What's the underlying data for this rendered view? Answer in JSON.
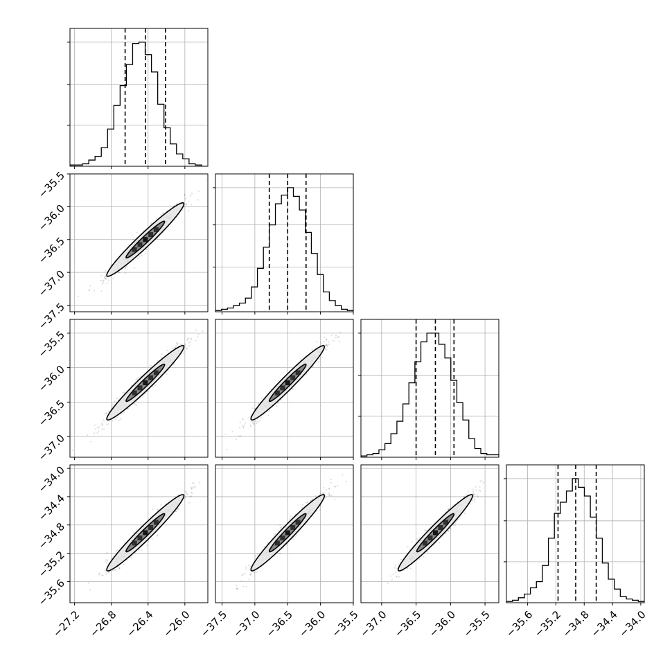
{
  "chart_data": {
    "type": "corner",
    "grid": true,
    "parameters": [
      {
        "index": 0,
        "range": [
          -27.25,
          -25.75
        ],
        "axis_ticks": [
          -27.2,
          -26.8,
          -26.4,
          -26.0
        ],
        "axis_tick_labels": [
          "−27.2",
          "−26.8",
          "−26.4",
          "−26.0"
        ],
        "hist_y_ticks": [
          0.33,
          0.66,
          1.0
        ],
        "quantiles": [
          -26.65,
          -26.43,
          -26.21
        ],
        "mean": -26.43,
        "sigma": 0.21,
        "histogram": [
          0.01,
          0.01,
          0.02,
          0.05,
          0.08,
          0.15,
          0.3,
          0.49,
          0.65,
          0.82,
          0.99,
          1.0,
          0.9,
          0.76,
          0.5,
          0.31,
          0.18,
          0.1,
          0.06,
          0.02,
          0.01,
          0.0
        ]
      },
      {
        "index": 1,
        "range": [
          -37.6,
          -35.5
        ],
        "axis_ticks": [
          -37.5,
          -37.0,
          -36.5,
          -36.0,
          -35.5
        ],
        "axis_tick_labels": [
          "−37.5",
          "−37.0",
          "−36.5",
          "−36.0",
          "−35.5"
        ],
        "hist_y_ticks": [
          0.36,
          0.7,
          1.0
        ],
        "quantiles": [
          -36.78,
          -36.5,
          -36.22
        ],
        "mean": -36.5,
        "sigma": 0.28,
        "histogram": [
          0.01,
          0.02,
          0.03,
          0.05,
          0.07,
          0.11,
          0.2,
          0.35,
          0.52,
          0.7,
          0.87,
          0.94,
          1.0,
          0.93,
          0.82,
          0.64,
          0.47,
          0.3,
          0.16,
          0.09,
          0.05,
          0.02,
          0.01
        ]
      },
      {
        "index": 2,
        "range": [
          -37.3,
          -35.3
        ],
        "axis_ticks": [
          -37.0,
          -36.5,
          -36.0,
          -35.5
        ],
        "axis_tick_labels": [
          "−37.0",
          "−36.5",
          "−36.0",
          "−35.5"
        ],
        "hist_y_ticks": [
          0.33,
          0.66,
          1.0
        ],
        "quantiles": [
          -36.5,
          -36.22,
          -35.95
        ],
        "mean": -36.22,
        "sigma": 0.27,
        "histogram": [
          0.01,
          0.02,
          0.03,
          0.06,
          0.11,
          0.19,
          0.29,
          0.43,
          0.6,
          0.77,
          0.93,
          1.0,
          1.0,
          0.91,
          0.8,
          0.62,
          0.44,
          0.3,
          0.15,
          0.07,
          0.03,
          0.02,
          0.02
        ]
      },
      {
        "index": 3,
        "range": [
          -35.9,
          -33.95
        ],
        "axis_ticks": [
          -35.6,
          -35.2,
          -34.8,
          -34.4,
          -34.0
        ],
        "axis_tick_labels": [
          "−35.6",
          "−35.2",
          "−34.8",
          "−34.4",
          "−34.0"
        ],
        "hist_y_ticks": [
          0.33,
          0.66,
          1.0
        ],
        "quantiles": [
          -35.17,
          -34.92,
          -34.63
        ],
        "mean": -34.91,
        "sigma": 0.27,
        "histogram": [
          0.01,
          0.02,
          0.04,
          0.07,
          0.12,
          0.17,
          0.3,
          0.52,
          0.72,
          0.81,
          0.9,
          1.0,
          0.93,
          0.86,
          0.69,
          0.52,
          0.32,
          0.19,
          0.11,
          0.05,
          0.03,
          0.02,
          0.01
        ]
      }
    ],
    "y_tick_labels": {
      "1": {
        "ticks": [
          -37.5,
          -37.0,
          -36.5,
          -36.0,
          -35.5
        ],
        "labels": [
          "−37.5",
          "−37.0",
          "−36.5",
          "−36.0",
          "−35.5"
        ]
      },
      "2": {
        "ticks": [
          -37.0,
          -36.5,
          -36.0,
          -35.5
        ],
        "labels": [
          "−37.0",
          "−36.5",
          "−36.0",
          "−35.5"
        ]
      },
      "3": {
        "ticks": [
          -35.6,
          -35.2,
          -34.8,
          -34.4,
          -34.0
        ],
        "labels": [
          "−35.6",
          "−35.2",
          "−34.8",
          "−34.4",
          "−34.0"
        ]
      }
    },
    "correlation": 0.97,
    "scatter_points_per_panel": 700,
    "contour_levels_sigma": [
      1,
      2
    ],
    "colors": {
      "lines": "#000000",
      "points": "#000000",
      "contour_fill_outer": "#e6e6e6",
      "contour_fill_inner": "#7a7a7a",
      "density_core": "#111111",
      "grid": "#b0b0b0"
    }
  }
}
